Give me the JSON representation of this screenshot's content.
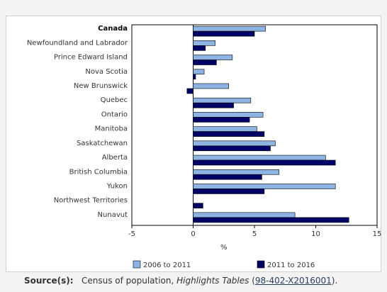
{
  "chart_data": {
    "type": "bar",
    "orientation": "horizontal",
    "categories": [
      "Canada",
      "Newfoundland and Labrador",
      "Prince Edward Island",
      "Nova Scotia",
      "New Brunswick",
      "Quebec",
      "Ontario",
      "Manitoba",
      "Saskatchewan",
      "Alberta",
      "British Columbia",
      "Yukon",
      "Northwest Territories",
      "Nunavut"
    ],
    "bold_categories": [
      "Canada"
    ],
    "series": [
      {
        "name": "2006 to 2011",
        "color": "#8db4e2",
        "values": [
          5.9,
          1.8,
          3.2,
          0.9,
          2.9,
          4.7,
          5.7,
          5.2,
          6.7,
          10.8,
          7.0,
          11.6,
          0.0,
          8.3
        ]
      },
      {
        "name": "2011 to 2016",
        "color": "#000066",
        "values": [
          5.0,
          1.0,
          1.9,
          0.2,
          -0.5,
          3.3,
          4.6,
          5.8,
          6.3,
          11.6,
          5.6,
          5.8,
          0.8,
          12.7
        ]
      }
    ],
    "xlabel": "%",
    "xlim": [
      -5,
      15
    ],
    "xticks": [
      -5,
      0,
      5,
      10,
      15
    ],
    "legend_position": "bottom",
    "grid": false
  },
  "source": {
    "label": "Source(s):",
    "text": "Census of population, ",
    "italic": "Highlights Tables",
    "paren_open": " (",
    "id": "98-402-X2016001",
    "paren_close": ")."
  }
}
